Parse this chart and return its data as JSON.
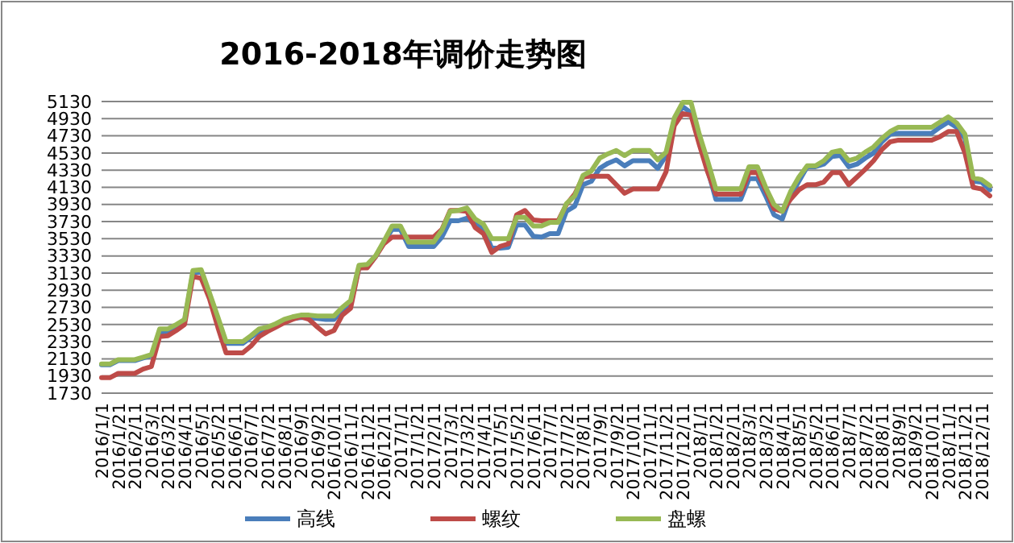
{
  "chart_data": {
    "type": "line",
    "title": "2016-2018年调价走势图",
    "categories": [
      "2016/1/1",
      null,
      "2016/1/21",
      null,
      "2016/2/11",
      null,
      "2016/3/1",
      null,
      "2016/3/21",
      null,
      "2016/4/11",
      null,
      "2016/5/1",
      null,
      "2016/5/21",
      null,
      "2016/6/11",
      null,
      "2016/7/1",
      null,
      "2016/7/21",
      null,
      "2016/8/11",
      null,
      "2016/9/1",
      null,
      "2016/9/21",
      null,
      "2016/10/11",
      null,
      "2016/11/1",
      null,
      "2016/11/21",
      null,
      "2016/12/11",
      null,
      "2017/1/1",
      null,
      "2017/1/21",
      null,
      "2017/2/11",
      null,
      "2017/3/1",
      null,
      "2017/3/21",
      null,
      "2017/4/11",
      null,
      "2017/5/1",
      null,
      "2017/5/21",
      null,
      "2017/6/11",
      null,
      "2017/7/1",
      null,
      "2017/7/21",
      null,
      "2017/8/11",
      null,
      "2017/9/1",
      null,
      "2017/9/21",
      null,
      "2017/10/11",
      null,
      "2017/11/1",
      null,
      "2017/11/21",
      null,
      "2017/12/11",
      null,
      "2018/1/1",
      null,
      "2018/1/21",
      null,
      "2018/2/11",
      null,
      "2018/3/1",
      null,
      "2018/3/21",
      null,
      "2018/4/11",
      null,
      "2018/5/1",
      null,
      "2018/5/21",
      null,
      "2018/6/11",
      null,
      "2018/7/1",
      null,
      "2018/7/21",
      null,
      "2018/8/11",
      null,
      "2018/9/1",
      null,
      "2018/9/21",
      null,
      "2018/10/11",
      null,
      "2018/11/1",
      null,
      "2018/11/21",
      null,
      "2018/12/11",
      null
    ],
    "series": [
      {
        "name": "高线",
        "color": "#4a7ebb",
        "values": [
          2060,
          2060,
          2110,
          2110,
          2110,
          2140,
          2170,
          2440,
          2450,
          2510,
          2570,
          3130,
          3150,
          2880,
          2600,
          2310,
          2310,
          2310,
          2380,
          2450,
          2480,
          2520,
          2560,
          2600,
          2610,
          2610,
          2600,
          2590,
          2590,
          2700,
          2780,
          3190,
          3200,
          3320,
          3490,
          3640,
          3640,
          3440,
          3440,
          3440,
          3440,
          3550,
          3740,
          3740,
          3770,
          3700,
          3650,
          3420,
          3420,
          3430,
          3690,
          3690,
          3560,
          3550,
          3590,
          3590,
          3850,
          3910,
          4160,
          4200,
          4350,
          4410,
          4450,
          4380,
          4440,
          4440,
          4440,
          4350,
          4500,
          4910,
          5070,
          5000,
          4690,
          4340,
          3990,
          3990,
          3990,
          3990,
          4230,
          4230,
          4030,
          3810,
          3760,
          4030,
          4200,
          4370,
          4370,
          4400,
          4490,
          4500,
          4370,
          4400,
          4470,
          4530,
          4660,
          4750,
          4760,
          4760,
          4760,
          4760,
          4760,
          4830,
          4890,
          4830,
          4700,
          4200,
          4190,
          4100
        ]
      },
      {
        "name": "螺纹",
        "color": "#be4b48",
        "values": [
          1910,
          1910,
          1960,
          1960,
          1960,
          2010,
          2040,
          2390,
          2400,
          2460,
          2530,
          3090,
          3070,
          2830,
          2500,
          2200,
          2200,
          2200,
          2280,
          2390,
          2450,
          2500,
          2550,
          2590,
          2620,
          2590,
          2500,
          2420,
          2460,
          2640,
          2720,
          3190,
          3190,
          3320,
          3470,
          3550,
          3550,
          3550,
          3550,
          3550,
          3550,
          3640,
          3860,
          3860,
          3850,
          3660,
          3590,
          3370,
          3440,
          3470,
          3810,
          3860,
          3750,
          3740,
          3740,
          3740,
          3930,
          4050,
          4250,
          4260,
          4260,
          4260,
          4160,
          4060,
          4110,
          4110,
          4110,
          4110,
          4310,
          4850,
          4990,
          4970,
          4630,
          4310,
          4050,
          4050,
          4050,
          4050,
          4300,
          4300,
          4100,
          3880,
          3850,
          3990,
          4100,
          4160,
          4160,
          4190,
          4300,
          4300,
          4160,
          4250,
          4340,
          4440,
          4570,
          4660,
          4680,
          4680,
          4680,
          4680,
          4680,
          4720,
          4780,
          4780,
          4530,
          4130,
          4110,
          4030
        ]
      },
      {
        "name": "盘螺",
        "color": "#98b954",
        "values": [
          2070,
          2070,
          2120,
          2120,
          2120,
          2150,
          2180,
          2480,
          2480,
          2530,
          2590,
          3160,
          3170,
          2900,
          2620,
          2330,
          2330,
          2330,
          2400,
          2480,
          2500,
          2540,
          2590,
          2620,
          2640,
          2640,
          2630,
          2630,
          2630,
          2730,
          2810,
          3220,
          3230,
          3330,
          3500,
          3680,
          3680,
          3490,
          3490,
          3490,
          3490,
          3630,
          3850,
          3860,
          3890,
          3760,
          3700,
          3530,
          3530,
          3530,
          3780,
          3780,
          3680,
          3680,
          3720,
          3720,
          3940,
          4030,
          4270,
          4320,
          4470,
          4520,
          4560,
          4500,
          4560,
          4560,
          4560,
          4450,
          4540,
          4940,
          5120,
          5120,
          4750,
          4440,
          4110,
          4110,
          4110,
          4110,
          4370,
          4370,
          4130,
          3930,
          3850,
          4080,
          4250,
          4380,
          4380,
          4440,
          4540,
          4560,
          4440,
          4470,
          4540,
          4600,
          4700,
          4780,
          4830,
          4830,
          4830,
          4830,
          4830,
          4890,
          4950,
          4880,
          4750,
          4240,
          4220,
          4150
        ]
      }
    ],
    "ylim": [
      1730,
      5130
    ],
    "yticks": [
      1730,
      1930,
      2130,
      2330,
      2530,
      2730,
      2930,
      3130,
      3330,
      3530,
      3730,
      3930,
      4130,
      4330,
      4530,
      4730,
      4930,
      5130
    ],
    "grid": "y",
    "legend": "bottom"
  }
}
